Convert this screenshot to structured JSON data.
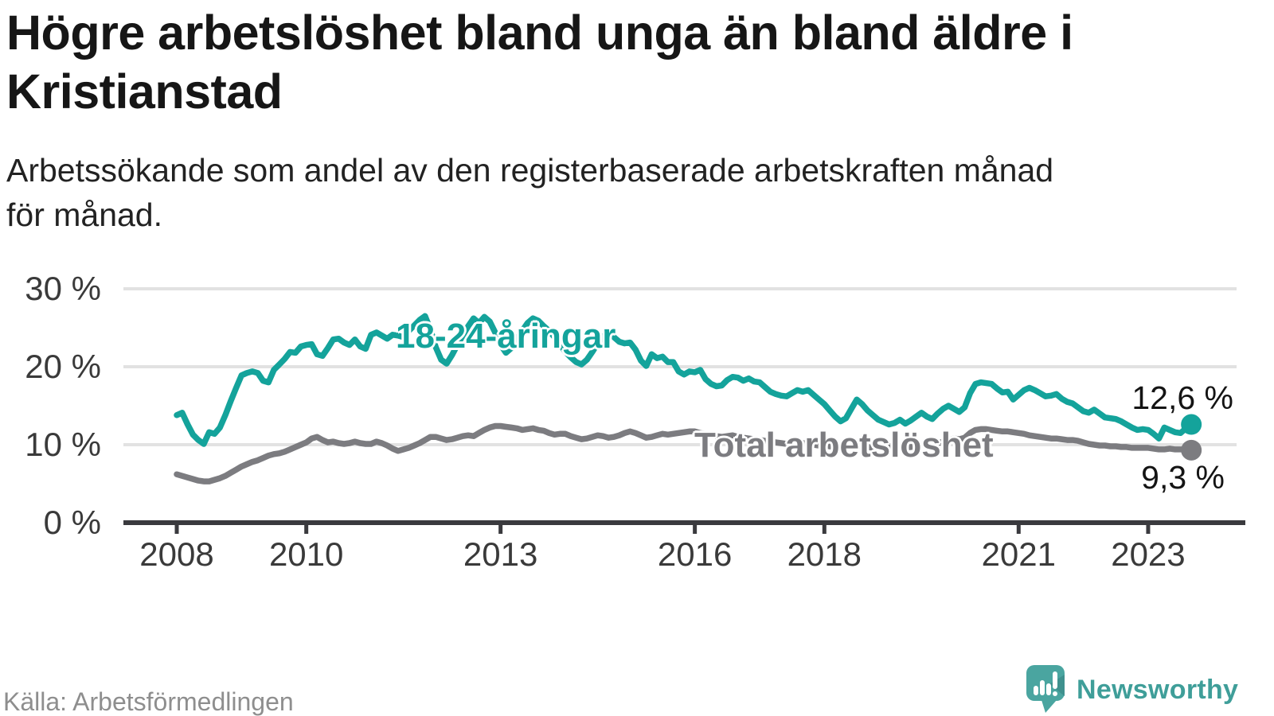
{
  "title_lines": [
    "Högre arbetslöshet bland unga än bland äldre i",
    "Kristianstad"
  ],
  "subtitle_lines": [
    "Arbetssökande som andel av den registerbaserade arbetskraften månad",
    "för månad."
  ],
  "source": "Källa: Arbetsförmedlingen",
  "branding": {
    "name": "Newsworthy",
    "icon": "speech-bubble-bar-chart-icon",
    "icon_color": "#4aa5a0",
    "icon_fold_color": "#3f918e",
    "text_color": "#3f9e99"
  },
  "colors": {
    "youth_line": "#14a39b",
    "total_line": "#7c7c80",
    "gridline": "#e2e2e2",
    "axis": "#3a3a3e",
    "title_text": "#161616",
    "tick_text": "#3a3a3a",
    "source_text": "#8e8e8e"
  },
  "chart_data": {
    "type": "line",
    "x_unit": "month",
    "start_month": "2008-01",
    "end_month": "2023-09",
    "frequency": "monthly",
    "ylim": [
      0,
      30
    ],
    "grid": "horizontal",
    "y_ticks": [
      {
        "value": 0,
        "label": "0 %"
      },
      {
        "value": 10,
        "label": "10 %"
      },
      {
        "value": 20,
        "label": "20 %"
      },
      {
        "value": 30,
        "label": "30 %"
      }
    ],
    "x_ticks": [
      {
        "year": 2008,
        "label": "2008"
      },
      {
        "year": 2010,
        "label": "2010"
      },
      {
        "year": 2013,
        "label": "2013"
      },
      {
        "year": 2016,
        "label": "2016"
      },
      {
        "year": 2018,
        "label": "2018"
      },
      {
        "year": 2021,
        "label": "2021"
      },
      {
        "year": 2023,
        "label": "2023"
      }
    ],
    "series": [
      {
        "key": "youth",
        "name": "18-24-åringar",
        "color": "#14a39b",
        "end_value": 12.6,
        "end_label": "12,6 %",
        "values": [
          13.8,
          14.1,
          12.6,
          11.3,
          10.6,
          10.1,
          11.6,
          11.4,
          12.2,
          13.8,
          15.6,
          17.3,
          18.9,
          19.2,
          19.4,
          19.2,
          18.2,
          18.0,
          19.6,
          20.3,
          21.0,
          21.9,
          21.8,
          22.6,
          22.8,
          22.9,
          21.6,
          21.4,
          22.4,
          23.5,
          23.6,
          23.1,
          22.8,
          23.5,
          22.6,
          22.3,
          24.1,
          24.4,
          24.0,
          23.6,
          24.1,
          24.0,
          23.8,
          24.6,
          25.3,
          26.0,
          26.5,
          24.8,
          22.5,
          20.9,
          20.4,
          21.5,
          22.8,
          24.0,
          25.2,
          26.2,
          25.6,
          26.4,
          25.8,
          24.4,
          22.8,
          21.8,
          22.4,
          23.5,
          24.6,
          25.6,
          26.2,
          25.9,
          25.2,
          24.6,
          23.8,
          22.9,
          21.9,
          21.2,
          20.6,
          20.3,
          20.9,
          21.9,
          23.0,
          23.9,
          24.4,
          23.8,
          23.2,
          23.0,
          23.1,
          22.2,
          20.8,
          20.1,
          21.6,
          21.1,
          21.3,
          20.6,
          20.6,
          19.4,
          19.0,
          19.4,
          19.3,
          19.6,
          18.4,
          17.8,
          17.5,
          17.6,
          18.3,
          18.7,
          18.6,
          18.2,
          18.5,
          18.1,
          18.0,
          17.4,
          16.8,
          16.5,
          16.3,
          16.2,
          16.6,
          17.0,
          16.8,
          17.0,
          16.4,
          15.8,
          15.2,
          14.4,
          13.6,
          13.0,
          13.4,
          14.6,
          15.8,
          15.2,
          14.4,
          13.8,
          13.2,
          12.9,
          12.6,
          12.8,
          13.2,
          12.7,
          13.1,
          13.6,
          14.1,
          13.6,
          13.3,
          14.0,
          14.6,
          15.0,
          14.6,
          14.2,
          14.8,
          16.6,
          17.8,
          18.0,
          17.9,
          17.8,
          17.2,
          16.7,
          16.8,
          15.8,
          16.4,
          17.0,
          17.3,
          17.0,
          16.6,
          16.2,
          16.3,
          16.5,
          15.9,
          15.5,
          15.3,
          14.8,
          14.3,
          14.1,
          14.5,
          14.0,
          13.5,
          13.4,
          13.3,
          13.0,
          12.6,
          12.2,
          11.9,
          12.0,
          11.9,
          11.4,
          10.8,
          12.2,
          11.9,
          11.6,
          11.5,
          12.1,
          12.6
        ]
      },
      {
        "key": "total",
        "name": "Total arbetslöshet",
        "color": "#7c7c80",
        "end_value": 9.3,
        "end_label": "9,3 %",
        "values": [
          6.2,
          6.0,
          5.8,
          5.6,
          5.4,
          5.3,
          5.3,
          5.5,
          5.7,
          6.0,
          6.4,
          6.8,
          7.2,
          7.5,
          7.8,
          8.0,
          8.3,
          8.6,
          8.8,
          8.9,
          9.1,
          9.4,
          9.7,
          10.0,
          10.3,
          10.8,
          11.0,
          10.6,
          10.3,
          10.4,
          10.2,
          10.1,
          10.2,
          10.4,
          10.2,
          10.1,
          10.1,
          10.4,
          10.2,
          9.9,
          9.5,
          9.2,
          9.4,
          9.6,
          9.9,
          10.2,
          10.6,
          11.0,
          11.0,
          10.8,
          10.6,
          10.7,
          10.9,
          11.1,
          11.2,
          11.1,
          11.5,
          11.9,
          12.2,
          12.4,
          12.4,
          12.3,
          12.2,
          12.1,
          11.9,
          12.0,
          12.1,
          11.9,
          11.8,
          11.5,
          11.3,
          11.4,
          11.4,
          11.1,
          10.9,
          10.7,
          10.8,
          11.0,
          11.2,
          11.1,
          10.9,
          11.0,
          11.2,
          11.5,
          11.7,
          11.5,
          11.2,
          10.9,
          11.0,
          11.2,
          11.4,
          11.3,
          11.4,
          11.5,
          11.6,
          11.7,
          11.7,
          11.5,
          11.4,
          11.2,
          11.1,
          11.0,
          11.1,
          11.2,
          11.0,
          10.9,
          10.8,
          10.7,
          10.6,
          10.5,
          10.4,
          10.3,
          10.2,
          10.1,
          10.2,
          10.3,
          10.2,
          10.1,
          10.0,
          9.9,
          9.9,
          9.8,
          9.7,
          9.6,
          9.6,
          9.7,
          9.9,
          9.8,
          9.7,
          9.6,
          9.6,
          9.7,
          9.8,
          9.7,
          9.6,
          9.6,
          9.7,
          9.8,
          10.0,
          10.0,
          10.1,
          10.2,
          10.4,
          10.6,
          10.8,
          10.7,
          10.9,
          11.5,
          11.9,
          12.0,
          12.0,
          11.9,
          11.8,
          11.7,
          11.7,
          11.6,
          11.5,
          11.4,
          11.2,
          11.1,
          11.0,
          10.9,
          10.8,
          10.8,
          10.7,
          10.6,
          10.6,
          10.5,
          10.3,
          10.1,
          10.0,
          9.9,
          9.9,
          9.8,
          9.8,
          9.7,
          9.7,
          9.6,
          9.6,
          9.6,
          9.6,
          9.5,
          9.4,
          9.4,
          9.5,
          9.4,
          9.4,
          9.4,
          9.3
        ]
      }
    ],
    "annotations": [
      {
        "target": "youth",
        "text": "18-24-åringar"
      },
      {
        "target": "total",
        "text": "Total arbetslöshet"
      }
    ]
  }
}
